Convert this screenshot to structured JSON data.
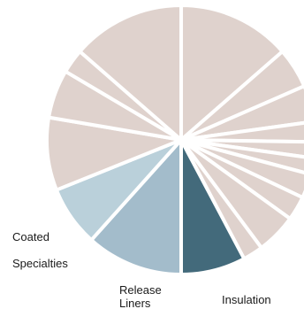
{
  "chart_data": {
    "type": "pie",
    "title": "",
    "start_angle_deg": 0,
    "direction": "clockwise",
    "slices": [
      {
        "label": "",
        "value": 14,
        "color": "#dfd2cd"
      },
      {
        "label": "",
        "value": 5,
        "color": "#dfd2cd"
      },
      {
        "label": "",
        "value": 4.5,
        "color": "#dfd2cd"
      },
      {
        "label": "",
        "value": 2.5,
        "color": "#dfd2cd"
      },
      {
        "label": "",
        "value": 2,
        "color": "#dfd2cd"
      },
      {
        "label": "",
        "value": 2,
        "color": "#dfd2cd"
      },
      {
        "label": "",
        "value": 3,
        "color": "#dfd2cd"
      },
      {
        "label": "",
        "value": 3,
        "color": "#dfd2cd"
      },
      {
        "label": "",
        "value": 5,
        "color": "#dfd2cd"
      },
      {
        "label": "",
        "value": 2.5,
        "color": "#dfd2cd"
      },
      {
        "label": "Insulation",
        "value": 8,
        "color": "#436a7b"
      },
      {
        "label": "Release Liners",
        "value": 12,
        "color": "#a3bccb"
      },
      {
        "label": "Coated Specialties",
        "value": 7.5,
        "color": "#bad0da"
      },
      {
        "label": "",
        "value": 9,
        "color": "#dfd2cd"
      },
      {
        "label": "",
        "value": 6,
        "color": "#dfd2cd"
      },
      {
        "label": "",
        "value": 3,
        "color": "#dfd2cd"
      },
      {
        "label": "",
        "value": 14,
        "color": "#dfd2cd"
      }
    ]
  },
  "labels": {
    "coated_line1": "Coated",
    "coated_line2": "Specialties",
    "release_line1": "Release",
    "release_line2": "Liners",
    "insulation": "Insulation"
  }
}
